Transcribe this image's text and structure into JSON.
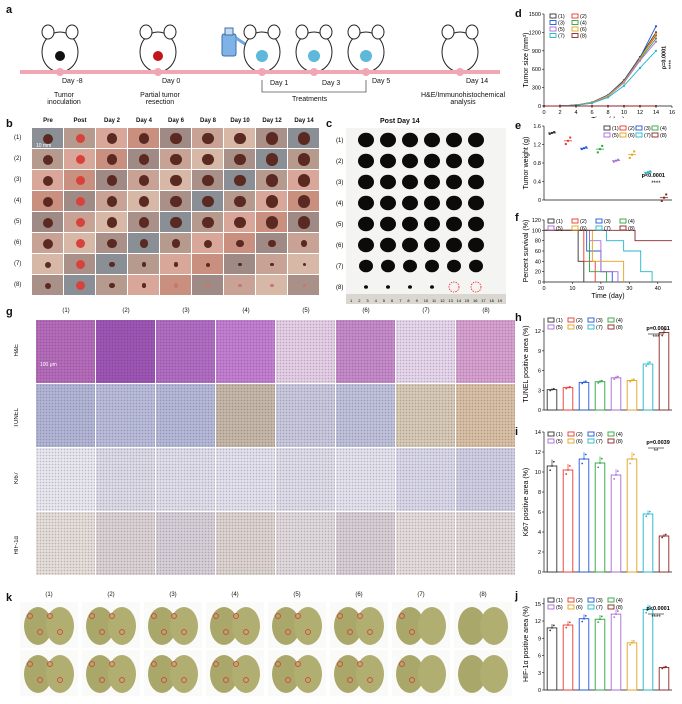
{
  "panels": [
    "a",
    "b",
    "c",
    "d",
    "e",
    "f",
    "g",
    "h",
    "i",
    "j",
    "k"
  ],
  "colors": {
    "g1": "#333333",
    "g2": "#e8392f",
    "g3": "#2156d8",
    "g4": "#2aa53c",
    "g5": "#a869d6",
    "g6": "#e3a21a",
    "g7": "#1fb5c9",
    "g8": "#8a2525",
    "timeline": "#f1a6b4"
  },
  "groups": [
    "(1)",
    "(2)",
    "(3)",
    "(4)",
    "(5)",
    "(6)",
    "(7)",
    "(8)"
  ],
  "timeline": {
    "days": [
      "Day -8",
      "Day 0",
      "Day 1",
      "Day 3",
      "Day 5",
      "Day 14"
    ],
    "tumor_inoculation": "Tumor\ninoculation",
    "partial_resection": "Partial tumor\nresection",
    "treatments": "Treatments",
    "analysis": "H&E/Immunohistochemical\nanalysis"
  },
  "panel_b": {
    "columns": [
      "Pre",
      "Post",
      "Day 2",
      "Day 4",
      "Day 6",
      "Day 8",
      "Day 10",
      "Day 12",
      "Day 14"
    ],
    "scale": "10 mm"
  },
  "panel_c": {
    "title": "Post Day 14",
    "ruler": [
      "1",
      "2",
      "3",
      "4",
      "5",
      "6",
      "7",
      "8",
      "9",
      "10",
      "11",
      "12",
      "13",
      "14",
      "15",
      "16",
      "17",
      "18",
      "19"
    ]
  },
  "panel_g": {
    "rows": [
      "H&E",
      "TUNEL",
      "Ki67",
      "HIF-1α"
    ],
    "scale": "100 μm"
  },
  "chart_data": [
    {
      "id": "d",
      "type": "line",
      "xlabel": "Time (day)",
      "ylabel": "Tumor size (mm³)",
      "x": [
        0,
        2,
        4,
        6,
        8,
        10,
        12,
        14
      ],
      "xlim": [
        0,
        16
      ],
      "ylim": [
        0,
        1500
      ],
      "xticks": [
        0,
        2,
        4,
        6,
        8,
        10,
        12,
        14,
        16
      ],
      "yticks": [
        0,
        300,
        600,
        900,
        1200,
        1500
      ],
      "series": [
        {
          "name": "(1)",
          "values": [
            0,
            3,
            15,
            60,
            180,
            420,
            800,
            1200
          ]
        },
        {
          "name": "(2)",
          "values": [
            0,
            3,
            14,
            55,
            170,
            400,
            780,
            1150
          ]
        },
        {
          "name": "(3)",
          "values": [
            0,
            3,
            15,
            58,
            175,
            410,
            790,
            1300
          ]
        },
        {
          "name": "(4)",
          "values": [
            0,
            3,
            14,
            52,
            165,
            390,
            760,
            1100
          ]
        },
        {
          "name": "(5)",
          "values": [
            0,
            3,
            13,
            50,
            160,
            380,
            740,
            1050
          ]
        },
        {
          "name": "(6)",
          "values": [
            0,
            3,
            14,
            55,
            168,
            395,
            770,
            1180
          ]
        },
        {
          "name": "(7)",
          "values": [
            0,
            3,
            12,
            45,
            140,
            330,
            620,
            900
          ]
        },
        {
          "name": "(8)",
          "values": [
            0,
            0,
            0,
            0,
            0,
            0,
            0,
            0
          ]
        }
      ],
      "annotation": "p=0.0001",
      "stars": "****"
    },
    {
      "id": "e",
      "type": "scatter",
      "ylabel": "Tumor weight (g)",
      "ylim": [
        0,
        1.6
      ],
      "yticks": [
        0,
        0.4,
        0.8,
        1.2,
        1.6
      ],
      "categories": [
        "(1)",
        "(2)",
        "(3)",
        "(4)",
        "(5)",
        "(6)",
        "(7)",
        "(8)"
      ],
      "values": [
        1.45,
        1.28,
        1.12,
        1.1,
        0.85,
        0.98,
        0.6,
        0.05
      ],
      "annotation": "p<0.0001",
      "stars": "****"
    },
    {
      "id": "f",
      "type": "line",
      "xlabel": "Time (day)",
      "ylabel": "Percent survival (%)",
      "xlim": [
        0,
        45
      ],
      "ylim": [
        0,
        120
      ],
      "xticks": [
        0,
        10,
        20,
        30,
        40
      ],
      "yticks": [
        0,
        20,
        40,
        60,
        80,
        100,
        120
      ],
      "series": [
        {
          "name": "(1)",
          "steps": [
            [
              0,
              100
            ],
            [
              12,
              100
            ],
            [
              12,
              40
            ],
            [
              14,
              40
            ],
            [
              14,
              0
            ]
          ]
        },
        {
          "name": "(2)",
          "steps": [
            [
              0,
              100
            ],
            [
              14,
              100
            ],
            [
              14,
              40
            ],
            [
              18,
              40
            ],
            [
              18,
              0
            ]
          ]
        },
        {
          "name": "(3)",
          "steps": [
            [
              0,
              100
            ],
            [
              15,
              100
            ],
            [
              15,
              60
            ],
            [
              20,
              60
            ],
            [
              20,
              20
            ],
            [
              24,
              20
            ],
            [
              24,
              0
            ]
          ]
        },
        {
          "name": "(4)",
          "steps": [
            [
              0,
              100
            ],
            [
              16,
              100
            ],
            [
              16,
              20
            ],
            [
              22,
              20
            ],
            [
              22,
              0
            ]
          ]
        },
        {
          "name": "(5)",
          "steps": [
            [
              0,
              100
            ],
            [
              16,
              100
            ],
            [
              16,
              80
            ],
            [
              20,
              80
            ],
            [
              20,
              20
            ],
            [
              26,
              20
            ],
            [
              26,
              0
            ]
          ]
        },
        {
          "name": "(6)",
          "steps": [
            [
              0,
              100
            ],
            [
              17,
              100
            ],
            [
              17,
              40
            ],
            [
              28,
              40
            ],
            [
              28,
              0
            ]
          ]
        },
        {
          "name": "(7)",
          "steps": [
            [
              0,
              100
            ],
            [
              22,
              100
            ],
            [
              22,
              80
            ],
            [
              28,
              80
            ],
            [
              28,
              60
            ],
            [
              34,
              60
            ],
            [
              34,
              20
            ],
            [
              38,
              20
            ],
            [
              38,
              0
            ]
          ]
        },
        {
          "name": "(8)",
          "steps": [
            [
              0,
              100
            ],
            [
              32,
              100
            ],
            [
              32,
              80
            ],
            [
              45,
              80
            ]
          ]
        }
      ]
    },
    {
      "id": "h",
      "type": "bar",
      "ylabel": "TUNEL positive area (%)",
      "ylim": [
        0,
        14
      ],
      "yticks": [
        0,
        3,
        6,
        9,
        12
      ],
      "categories": [
        "(1)",
        "(2)",
        "(3)",
        "(4)",
        "(5)",
        "(6)",
        "(7)",
        "(8)"
      ],
      "values": [
        3.1,
        3.4,
        4.2,
        4.3,
        4.9,
        4.5,
        7.0,
        11.8
      ],
      "annotation": "p=0.0001",
      "stars": "***"
    },
    {
      "id": "i",
      "type": "bar",
      "ylabel": "Ki67 positive area (%)",
      "ylim": [
        0,
        14
      ],
      "yticks": [
        0,
        2,
        4,
        6,
        8,
        10,
        12,
        14
      ],
      "categories": [
        "(1)",
        "(2)",
        "(3)",
        "(4)",
        "(5)",
        "(6)",
        "(7)",
        "(8)"
      ],
      "values": [
        10.6,
        10.2,
        11.3,
        10.9,
        9.7,
        11.3,
        5.8,
        3.6
      ],
      "annotation": "p=0.0039",
      "stars": "**"
    },
    {
      "id": "j",
      "type": "bar",
      "ylabel": "HIF-1α positive area (%)",
      "ylim": [
        0,
        16
      ],
      "yticks": [
        0,
        3,
        6,
        9,
        12,
        15
      ],
      "categories": [
        "(1)",
        "(2)",
        "(3)",
        "(4)",
        "(5)",
        "(6)",
        "(7)",
        "(8)"
      ],
      "values": [
        10.8,
        11.3,
        12.4,
        12.3,
        13.2,
        8.2,
        14.0,
        3.9
      ],
      "annotation": "p<0.0001",
      "stars": "****"
    }
  ]
}
